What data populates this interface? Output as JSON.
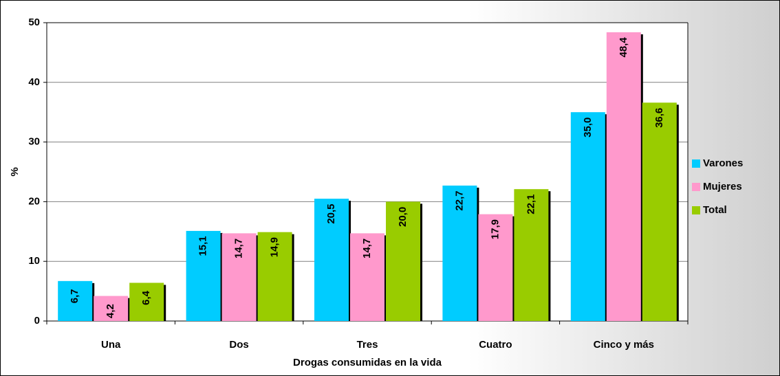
{
  "chart_data": {
    "type": "bar",
    "x_label": "Drogas consumidas en la vida",
    "y_label": "%",
    "categories": [
      "Una",
      "Dos",
      "Tres",
      "Cuatro",
      "Cinco y más"
    ],
    "series": [
      {
        "name": "Varones",
        "color": "#00ccff",
        "values": [
          6.7,
          15.1,
          20.5,
          22.7,
          35.0
        ],
        "value_labels": [
          "6,7",
          "15,1",
          "20,5",
          "22,7",
          "35,0"
        ]
      },
      {
        "name": "Mujeres",
        "color": "#ff99cc",
        "values": [
          4.2,
          14.7,
          14.7,
          17.9,
          48.4
        ],
        "value_labels": [
          "4,2",
          "14,7",
          "14,7",
          "17,9",
          "48,4"
        ]
      },
      {
        "name": "Total",
        "color": "#99cc00",
        "values": [
          6.4,
          14.9,
          20.0,
          22.1,
          36.6
        ],
        "value_labels": [
          "6,4",
          "14,9",
          "20,0",
          "22,1",
          "36,6"
        ]
      }
    ],
    "ylim": [
      0,
      50
    ],
    "yticks": [
      0,
      10,
      20,
      30,
      40,
      50
    ],
    "grid": true,
    "legend": "right"
  }
}
